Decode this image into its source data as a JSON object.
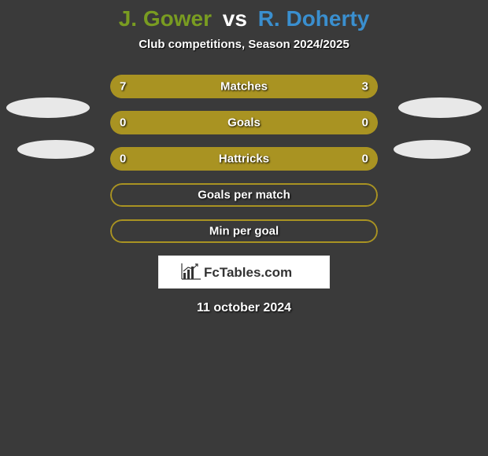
{
  "title": {
    "player1": "J. Gower",
    "vs": "vs",
    "player2": "R. Doherty",
    "player1_color": "#799c21",
    "player2_color": "#3a8fcf"
  },
  "subtitle": "Club competitions, Season 2024/2025",
  "colors": {
    "olive": "#a99322",
    "olive_border": "#a99322",
    "background": "#3a3a3a",
    "ellipse": "#e8e8e8",
    "brand_text": "#333333"
  },
  "rows": [
    {
      "label": "Matches",
      "left": "7",
      "right": "3",
      "left_pct": 70,
      "right_pct": 30,
      "show_values": true
    },
    {
      "label": "Goals",
      "left": "0",
      "right": "0",
      "left_pct": 50,
      "right_pct": 50,
      "show_values": true
    },
    {
      "label": "Hattricks",
      "left": "0",
      "right": "0",
      "left_pct": 50,
      "right_pct": 50,
      "show_values": true
    },
    {
      "label": "Goals per match",
      "left": "",
      "right": "",
      "left_pct": 0,
      "right_pct": 0,
      "show_values": false
    },
    {
      "label": "Min per goal",
      "left": "",
      "right": "",
      "left_pct": 0,
      "right_pct": 0,
      "show_values": false
    }
  ],
  "brand": "FcTables.com",
  "date": "11 october 2024"
}
